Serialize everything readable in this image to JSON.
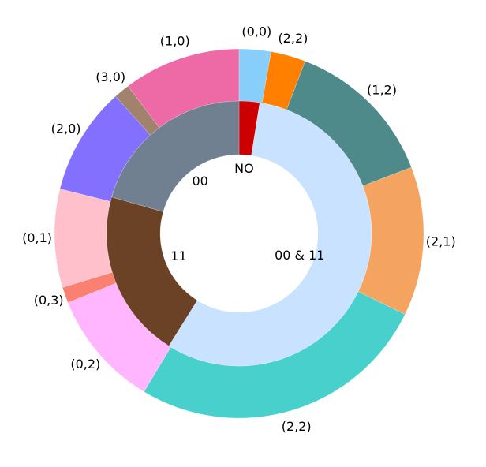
{
  "chart_data": {
    "type": "nested-pie",
    "outer": {
      "categories": [
        "(0,0)",
        "(2,2)",
        "(1,2)",
        "(2,1)",
        "(2,2)",
        "(0,2)",
        "(0,3)",
        "(0,1)",
        "(2,0)",
        "(3,0)",
        "(1,0)"
      ],
      "values": [
        10,
        11,
        48,
        47,
        95,
        37,
        5,
        31,
        34,
        5,
        37
      ],
      "colors": [
        "#87cefa",
        "#ff7f00",
        "#4f8a8b",
        "#f4a460",
        "#48d1cc",
        "#ffb6ff",
        "#fa8072",
        "#ffc0cb",
        "#8470ff",
        "#a0826d",
        "#ee6aa7"
      ]
    },
    "inner": {
      "categories": [
        "NO",
        "00 & 11",
        "11",
        "00"
      ],
      "values": [
        9,
        203,
        74,
        74
      ],
      "colors": [
        "#cc0000",
        "#c9e2ff",
        "#6b4226",
        "#708090"
      ]
    }
  }
}
